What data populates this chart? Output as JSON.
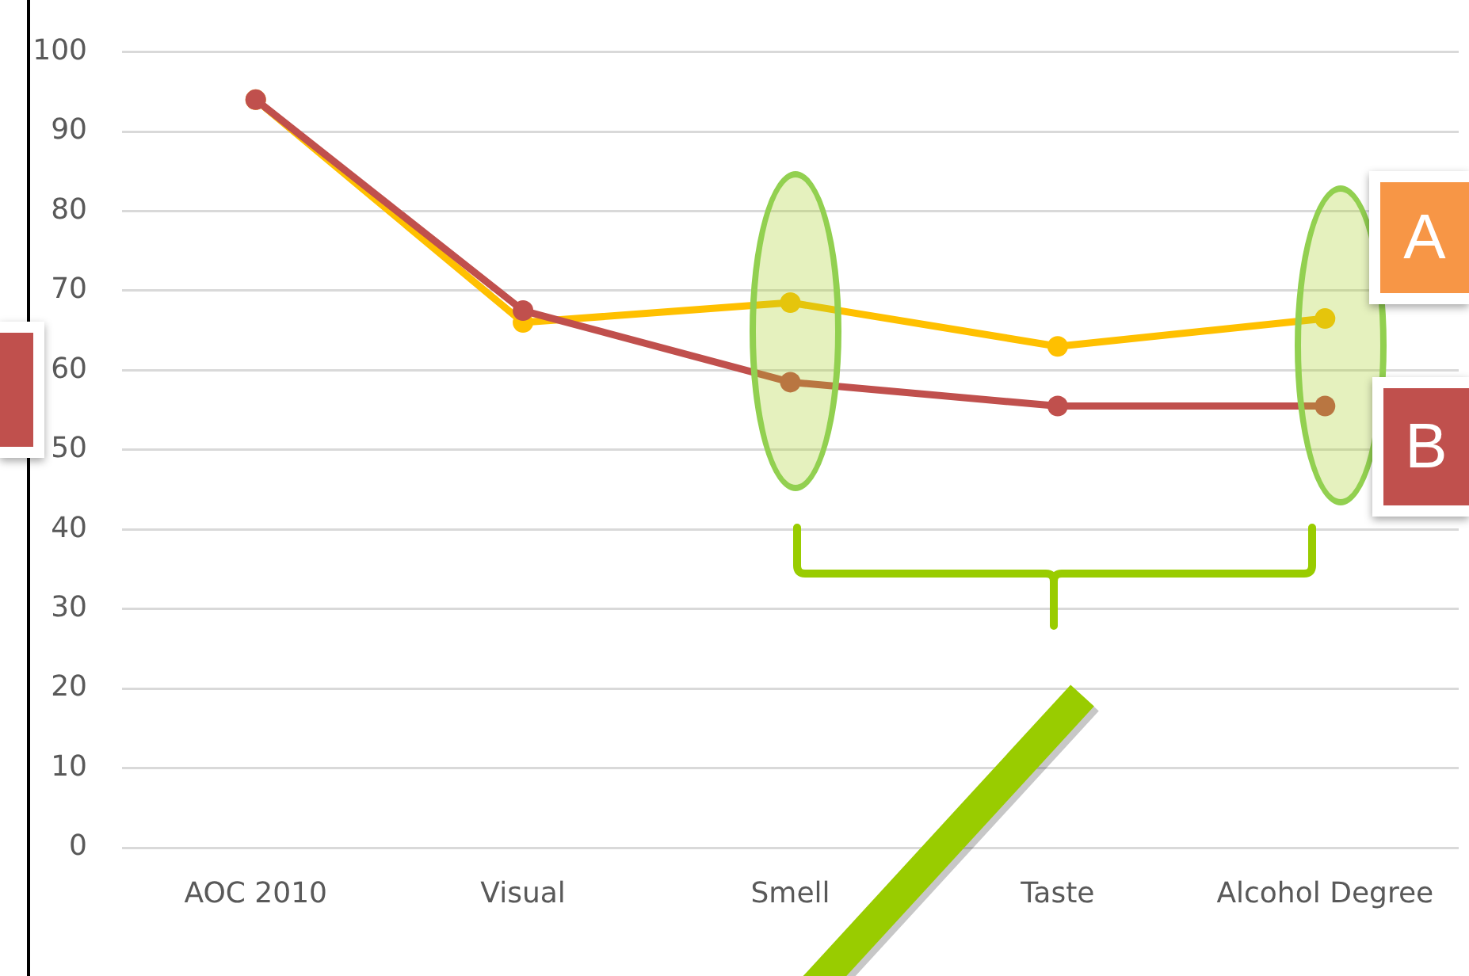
{
  "chart_data": {
    "type": "line",
    "categories": [
      "AOC 2010",
      "Visual",
      "Smell",
      "Taste",
      "Alcohol Degree"
    ],
    "series": [
      {
        "name": "A",
        "color": "#ffc000",
        "values": [
          94,
          66,
          68.5,
          63,
          66.5
        ]
      },
      {
        "name": "B",
        "color": "#c0504d",
        "values": [
          94,
          67.5,
          58.5,
          55.5,
          55.5
        ]
      }
    ],
    "ylim": [
      0,
      100
    ],
    "yticks": [
      0,
      10,
      20,
      30,
      40,
      50,
      60,
      70,
      80,
      90,
      100
    ],
    "grid": "y",
    "legend": false,
    "marker": "circle",
    "line_style": "solid"
  }
}
